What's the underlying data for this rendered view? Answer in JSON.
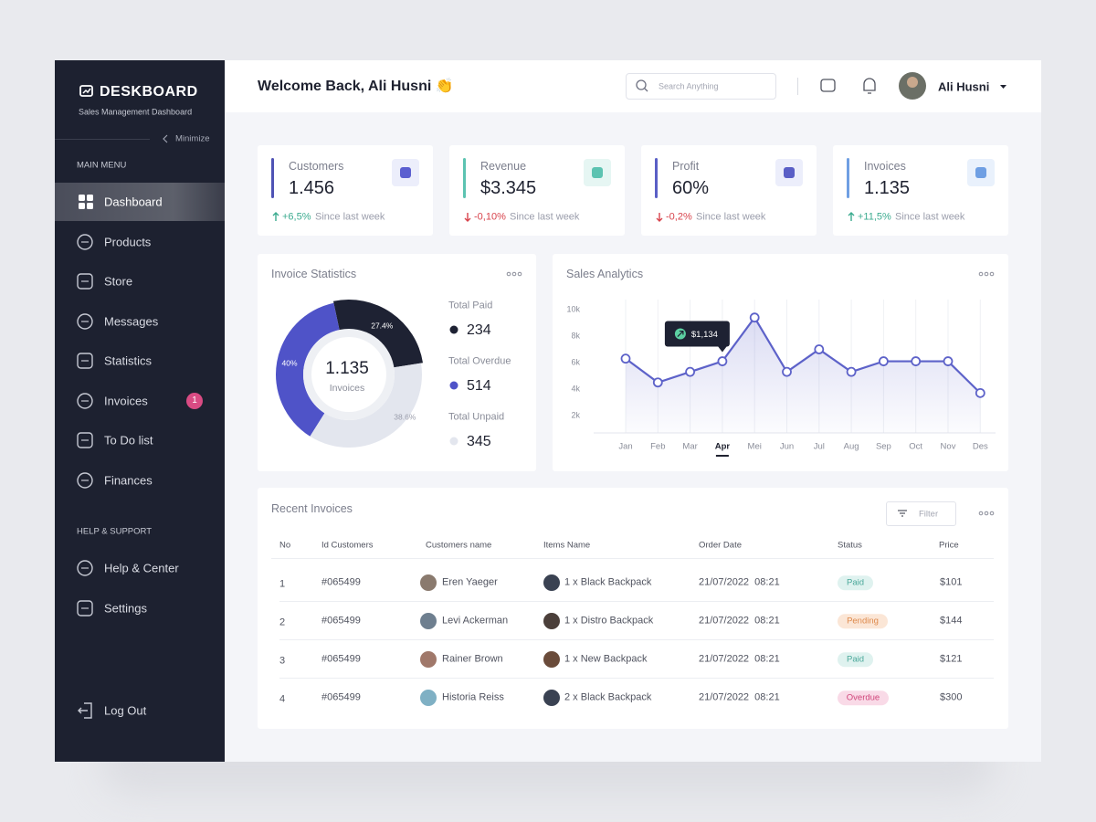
{
  "sidebar": {
    "brand": "DESKBOARD",
    "tagline": "Sales Management Dashboard",
    "minimize": "Minimize",
    "main_menu_label": "MAIN MENU",
    "main_menu": [
      {
        "label": "Dashboard",
        "active": true
      },
      {
        "label": "Products"
      },
      {
        "label": "Store"
      },
      {
        "label": "Messages"
      },
      {
        "label": "Statistics"
      },
      {
        "label": "Invoices",
        "badge": 1
      },
      {
        "label": "To Do list"
      },
      {
        "label": "Finances"
      }
    ],
    "support_label": "HELP & SUPPORT",
    "support_menu": [
      {
        "label": "Help & Center"
      },
      {
        "label": "Settings"
      }
    ],
    "logout": "Log Out"
  },
  "header": {
    "welcome": "Welcome Back, Ali Husni 👏",
    "search_placeholder": "Search Anything",
    "user_name": "Ali Husni"
  },
  "stats": [
    {
      "label": "Customers",
      "value": "1.456",
      "change": "+6,5%",
      "note": "Since last week",
      "trend": "up",
      "color": "#4f53b5",
      "icon_color": "#5b5fd0",
      "icon_bg": "#eceefb"
    },
    {
      "label": "Revenue",
      "value": "$3.345",
      "change": "-0,10%",
      "note": "Since last week",
      "trend": "down",
      "color": "#5cc3b1",
      "icon_color": "#5cc3b1",
      "icon_bg": "#e6f6f3"
    },
    {
      "label": "Profit",
      "value": "60%",
      "change": "-0,2%",
      "note": "Since last week",
      "trend": "down",
      "color": "#5a5fc6",
      "icon_color": "#5a5fc6",
      "icon_bg": "#eceefb"
    },
    {
      "label": "Invoices",
      "value": "1.135",
      "change": "+11,5%",
      "note": "Since last week",
      "trend": "up",
      "color": "#6f9fe3",
      "icon_color": "#6f9fe3",
      "icon_bg": "#e9f1fc"
    }
  ],
  "invoice_statistics": {
    "title": "Invoice Statistics",
    "chart": {
      "type": "pie",
      "center_value": "1.135",
      "center_label": "Invoices",
      "values": [
        27.4,
        40,
        38.6
      ],
      "value_labels": [
        "27.4%",
        "40%",
        "38.6%"
      ],
      "colors": [
        "#1e2233",
        "#4f53c8",
        "#e3e6ee"
      ]
    },
    "legend": [
      {
        "label": "Total Paid",
        "value": 234,
        "color": "#1e2233"
      },
      {
        "label": "Total Overdue",
        "value": 514,
        "color": "#4f53c8"
      },
      {
        "label": "Total Unpaid",
        "value": 345,
        "color": "#e3e6ee"
      }
    ]
  },
  "sales_analytics": {
    "title": "Sales Analytics",
    "chart": {
      "type": "line",
      "categories": [
        "Jan",
        "Feb",
        "Mar",
        "Apr",
        "Mei",
        "Jun",
        "Jul",
        "Aug",
        "Sep",
        "Oct",
        "Nov",
        "Des"
      ],
      "values": [
        6300,
        4500,
        5300,
        6100,
        9400,
        5300,
        7000,
        5300,
        6100,
        6100,
        6100,
        3700
      ],
      "ylim": [
        1000,
        10500
      ],
      "yticks": [
        {
          "value": 2000,
          "label": "2k"
        },
        {
          "value": 4000,
          "label": "4k"
        },
        {
          "value": 6000,
          "label": "6k"
        },
        {
          "value": 8000,
          "label": "8k"
        },
        {
          "value": 10000,
          "label": "10k"
        }
      ],
      "color": "#5d62c9",
      "highlight_index": 3,
      "annotation": "$1,134"
    }
  },
  "recent_invoices": {
    "title": "Recent Invoices",
    "filter": "Filter",
    "columns": [
      "No",
      "Id Customers",
      "Customers name",
      "Items Name",
      "Order Date",
      "Status",
      "Price"
    ],
    "rows": [
      {
        "no": "1",
        "id": "#065499",
        "name": "Eren Yaeger",
        "item": "1 x Black Backpack",
        "date": "21/07/2022  08:21",
        "status": "Paid",
        "status_bg": "#dff2ef",
        "status_fg": "#4aa89a",
        "price": "$101"
      },
      {
        "no": "2",
        "id": "#065499",
        "name": "Levi Ackerman",
        "item": "1 x Distro Backpack",
        "date": "21/07/2022  08:21",
        "status": "Pending",
        "status_bg": "#fbe6d6",
        "status_fg": "#de8a4c",
        "price": "$144"
      },
      {
        "no": "3",
        "id": "#065499",
        "name": "Rainer Brown",
        "item": "1 x New Backpack",
        "date": "21/07/2022  08:21",
        "status": "Paid",
        "status_bg": "#dff2ef",
        "status_fg": "#4aa89a",
        "price": "$121"
      },
      {
        "no": "4",
        "id": "#065499",
        "name": "Historia Reiss",
        "item": "2 x Black Backpack",
        "date": "21/07/2022  08:21",
        "status": "Overdue",
        "status_bg": "#f9dae7",
        "status_fg": "#d0467b",
        "price": "$300"
      }
    ]
  }
}
